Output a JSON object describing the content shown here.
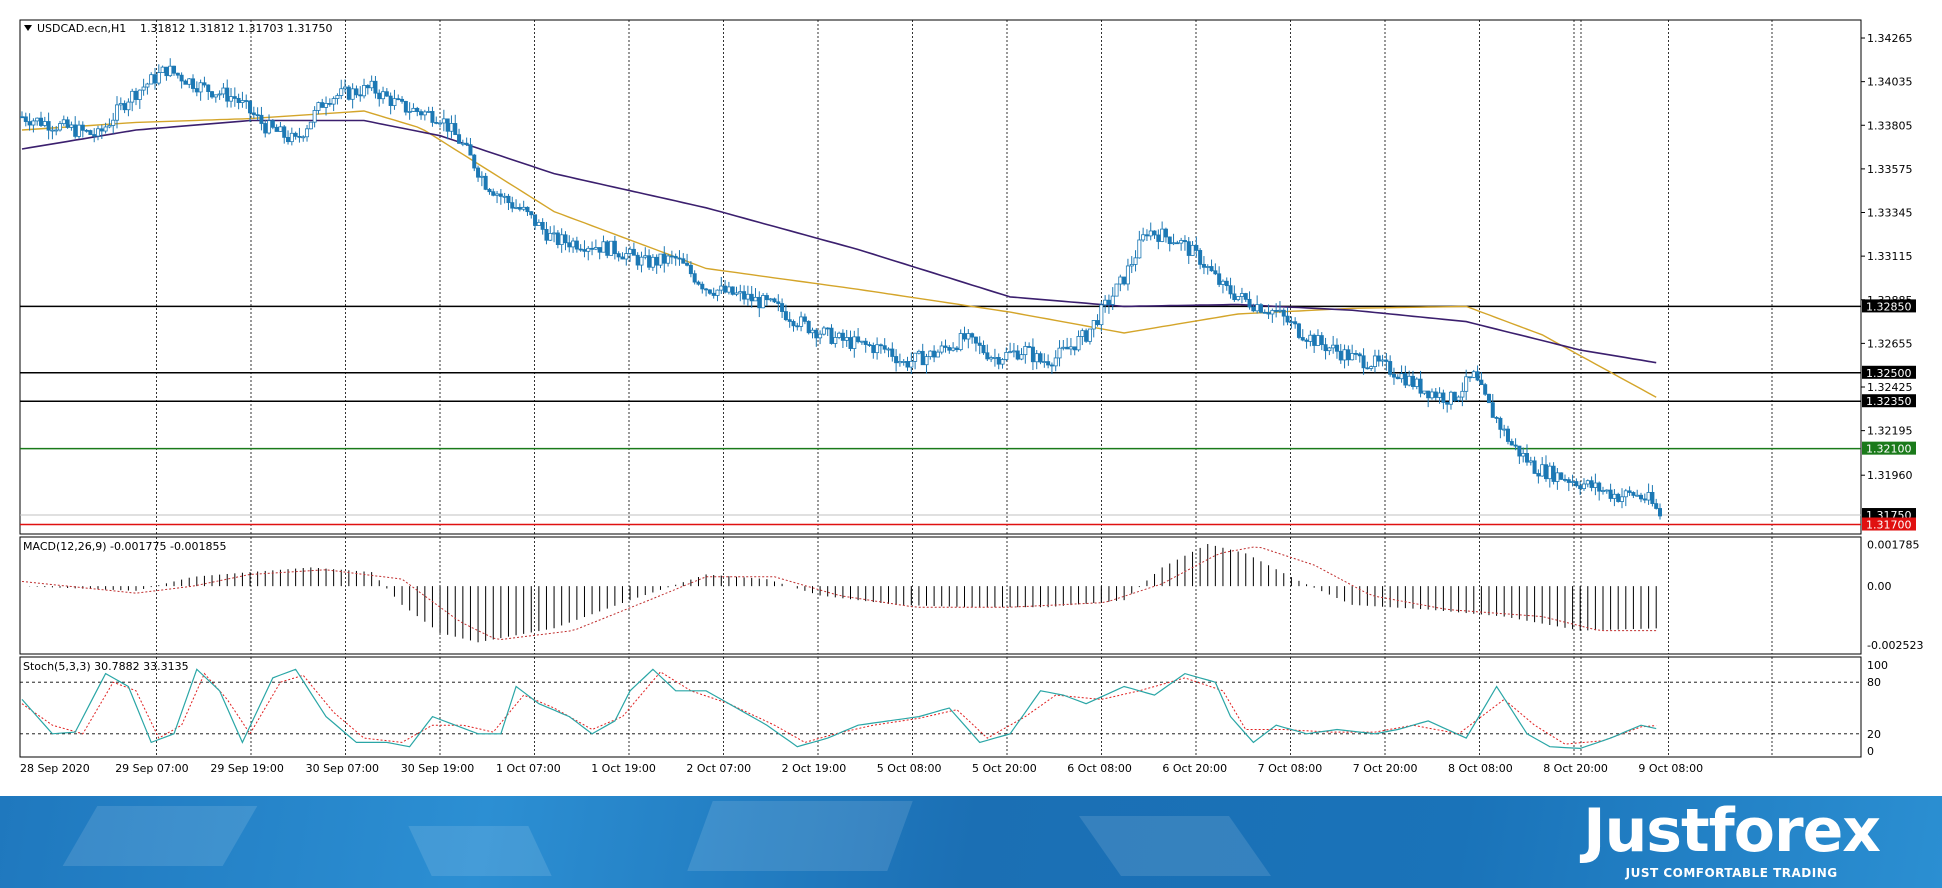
{
  "header": {
    "symbol": "USDCAD.ecn,H1",
    "ohlc": "1.31812 1.31812 1.31703 1.31750"
  },
  "macd_label": "MACD(12,26,9) -0.001775 -0.001855",
  "stoch_label": "Stoch(5,3,3) 30.7882 33.3135",
  "chart_data": {
    "type": "candlestick",
    "price_axis": {
      "ticks": [
        "1.34265",
        "1.34035",
        "1.33805",
        "1.33575",
        "1.33345",
        "1.33115",
        "1.32885",
        "1.32655",
        "1.32425",
        "1.32195",
        "1.31960"
      ],
      "range": [
        1.3165,
        1.3436
      ]
    },
    "x_labels": [
      "28 Sep 2020",
      "29 Sep 07:00",
      "29 Sep 19:00",
      "30 Sep 07:00",
      "30 Sep 19:00",
      "1 Oct 07:00",
      "1 Oct 19:00",
      "2 Oct 07:00",
      "2 Oct 19:00",
      "5 Oct 08:00",
      "5 Oct 20:00",
      "6 Oct 08:00",
      "6 Oct 20:00",
      "7 Oct 08:00",
      "7 Oct 20:00",
      "8 Oct 08:00",
      "8 Oct 20:00",
      "9 Oct 08:00"
    ],
    "levels": [
      {
        "price": 1.3285,
        "label": "1.32850",
        "color": "#000000",
        "tag_bg": "#000000",
        "tag_fg": "#ffffff"
      },
      {
        "price": 1.325,
        "label": "1.32500",
        "color": "#000000",
        "tag_bg": "#000000",
        "tag_fg": "#ffffff"
      },
      {
        "price": 1.3235,
        "label": "1.32350",
        "color": "#000000",
        "tag_bg": "#000000",
        "tag_fg": "#ffffff"
      },
      {
        "price": 1.321,
        "label": "1.32100",
        "color": "#1a7a1a",
        "tag_bg": "#1a7a1a",
        "tag_fg": "#ffffff"
      },
      {
        "price": 1.3175,
        "label": "1.31750",
        "color": "#c0c0c0",
        "tag_bg": "#000000",
        "tag_fg": "#ffffff"
      },
      {
        "price": 1.317,
        "label": "1.31700",
        "color": "#e01010",
        "tag_bg": "#e01010",
        "tag_fg": "#ffffff"
      }
    ],
    "close_path": [
      [
        0,
        1.3385
      ],
      [
        10,
        1.338
      ],
      [
        20,
        1.3375
      ],
      [
        28,
        1.3395
      ],
      [
        38,
        1.341
      ],
      [
        48,
        1.34
      ],
      [
        56,
        1.3395
      ],
      [
        64,
        1.338
      ],
      [
        72,
        1.3372
      ],
      [
        80,
        1.3395
      ],
      [
        92,
        1.34
      ],
      [
        100,
        1.339
      ],
      [
        110,
        1.3385
      ],
      [
        116,
        1.337
      ],
      [
        122,
        1.335
      ],
      [
        128,
        1.334
      ],
      [
        132,
        1.3335
      ],
      [
        140,
        1.332
      ],
      [
        148,
        1.3318
      ],
      [
        156,
        1.3315
      ],
      [
        164,
        1.3308
      ],
      [
        172,
        1.331
      ],
      [
        180,
        1.3295
      ],
      [
        190,
        1.329
      ],
      [
        198,
        1.3285
      ],
      [
        206,
        1.3275
      ],
      [
        214,
        1.3268
      ],
      [
        220,
        1.3265
      ],
      [
        228,
        1.3262
      ],
      [
        232,
        1.3255
      ],
      [
        240,
        1.326
      ],
      [
        248,
        1.3268
      ],
      [
        256,
        1.3258
      ],
      [
        264,
        1.3262
      ],
      [
        268,
        1.3256
      ],
      [
        272,
        1.3258
      ],
      [
        280,
        1.327
      ],
      [
        290,
        1.33
      ],
      [
        296,
        1.3325
      ],
      [
        304,
        1.332
      ],
      [
        310,
        1.331
      ],
      [
        316,
        1.3295
      ],
      [
        322,
        1.3288
      ],
      [
        330,
        1.3282
      ],
      [
        336,
        1.3272
      ],
      [
        342,
        1.3265
      ],
      [
        350,
        1.3258
      ],
      [
        356,
        1.3255
      ],
      [
        362,
        1.325
      ],
      [
        368,
        1.3242
      ],
      [
        376,
        1.3236
      ],
      [
        382,
        1.3248
      ],
      [
        386,
        1.3232
      ],
      [
        392,
        1.3212
      ],
      [
        398,
        1.32
      ],
      [
        404,
        1.3196
      ],
      [
        410,
        1.3192
      ],
      [
        416,
        1.3188
      ],
      [
        420,
        1.3185
      ],
      [
        424,
        1.3186
      ],
      [
        428,
        1.3183
      ],
      [
        431,
        1.3175
      ]
    ],
    "ma_purple": [
      [
        0,
        1.3368
      ],
      [
        30,
        1.3378
      ],
      [
        60,
        1.3383
      ],
      [
        90,
        1.3383
      ],
      [
        110,
        1.3375
      ],
      [
        140,
        1.3355
      ],
      [
        180,
        1.3337
      ],
      [
        220,
        1.3315
      ],
      [
        260,
        1.329
      ],
      [
        290,
        1.3285
      ],
      [
        320,
        1.3286
      ],
      [
        350,
        1.3283
      ],
      [
        380,
        1.3277
      ],
      [
        410,
        1.3262
      ],
      [
        431,
        1.3255
      ]
    ],
    "ma_gold": [
      [
        0,
        1.3378
      ],
      [
        30,
        1.3382
      ],
      [
        60,
        1.3384
      ],
      [
        90,
        1.3388
      ],
      [
        105,
        1.3379
      ],
      [
        140,
        1.3335
      ],
      [
        180,
        1.3305
      ],
      [
        220,
        1.3294
      ],
      [
        260,
        1.3282
      ],
      [
        290,
        1.3271
      ],
      [
        320,
        1.3281
      ],
      [
        350,
        1.3284
      ],
      [
        380,
        1.3285
      ],
      [
        400,
        1.327
      ],
      [
        431,
        1.3236
      ]
    ],
    "macd": {
      "ticks": [
        "0.001785",
        "0.00",
        "-0.002523"
      ],
      "range": [
        -0.0029,
        0.0021
      ],
      "hist_path": [
        [
          0,
          0.0
        ],
        [
          30,
          -0.0002
        ],
        [
          45,
          0.0004
        ],
        [
          60,
          0.0006
        ],
        [
          76,
          0.0008
        ],
        [
          92,
          0.0006
        ],
        [
          100,
          -0.0008
        ],
        [
          110,
          -0.002
        ],
        [
          120,
          -0.0024
        ],
        [
          140,
          -0.0018
        ],
        [
          160,
          -0.0006
        ],
        [
          180,
          0.0005
        ],
        [
          196,
          0.0003
        ],
        [
          210,
          -0.0004
        ],
        [
          230,
          -0.0008
        ],
        [
          250,
          -0.0009
        ],
        [
          270,
          -0.0009
        ],
        [
          290,
          -0.0006
        ],
        [
          300,
          0.0008
        ],
        [
          312,
          0.0018
        ],
        [
          322,
          0.0014
        ],
        [
          335,
          0.0003
        ],
        [
          350,
          -0.0008
        ],
        [
          370,
          -0.001
        ],
        [
          390,
          -0.0013
        ],
        [
          410,
          -0.0019
        ],
        [
          431,
          -0.0018
        ]
      ],
      "signal_path": [
        [
          0,
          0.0002
        ],
        [
          30,
          -0.0003
        ],
        [
          45,
          0.0
        ],
        [
          60,
          0.0005
        ],
        [
          80,
          0.0007
        ],
        [
          100,
          0.0003
        ],
        [
          115,
          -0.0015
        ],
        [
          125,
          -0.0023
        ],
        [
          145,
          -0.0019
        ],
        [
          165,
          -0.0006
        ],
        [
          180,
          0.0004
        ],
        [
          198,
          0.0004
        ],
        [
          215,
          -0.0004
        ],
        [
          235,
          -0.0009
        ],
        [
          260,
          -0.0009
        ],
        [
          285,
          -0.0007
        ],
        [
          300,
          0.0001
        ],
        [
          315,
          0.0014
        ],
        [
          325,
          0.0017
        ],
        [
          340,
          0.0009
        ],
        [
          355,
          -0.0004
        ],
        [
          375,
          -0.001
        ],
        [
          400,
          -0.0013
        ],
        [
          415,
          -0.0019
        ],
        [
          431,
          -0.0019
        ]
      ]
    },
    "stoch": {
      "ticks": [
        "100",
        "80",
        "20",
        "0"
      ],
      "levels": [
        80,
        20
      ],
      "k_path": [
        [
          0,
          60
        ],
        [
          8,
          20
        ],
        [
          14,
          22
        ],
        [
          22,
          90
        ],
        [
          28,
          75
        ],
        [
          34,
          10
        ],
        [
          40,
          20
        ],
        [
          46,
          95
        ],
        [
          52,
          70
        ],
        [
          58,
          10
        ],
        [
          66,
          85
        ],
        [
          72,
          95
        ],
        [
          80,
          40
        ],
        [
          88,
          10
        ],
        [
          96,
          10
        ],
        [
          102,
          5
        ],
        [
          108,
          40
        ],
        [
          114,
          30
        ],
        [
          120,
          20
        ],
        [
          126,
          20
        ],
        [
          130,
          75
        ],
        [
          136,
          55
        ],
        [
          144,
          40
        ],
        [
          150,
          20
        ],
        [
          156,
          35
        ],
        [
          160,
          70
        ],
        [
          166,
          95
        ],
        [
          172,
          70
        ],
        [
          180,
          70
        ],
        [
          188,
          50
        ],
        [
          196,
          30
        ],
        [
          204,
          5
        ],
        [
          212,
          15
        ],
        [
          220,
          30
        ],
        [
          228,
          35
        ],
        [
          236,
          40
        ],
        [
          244,
          50
        ],
        [
          252,
          10
        ],
        [
          260,
          20
        ],
        [
          268,
          70
        ],
        [
          274,
          65
        ],
        [
          280,
          55
        ],
        [
          290,
          75
        ],
        [
          298,
          65
        ],
        [
          306,
          90
        ],
        [
          314,
          80
        ],
        [
          318,
          40
        ],
        [
          324,
          10
        ],
        [
          330,
          30
        ],
        [
          338,
          20
        ],
        [
          346,
          25
        ],
        [
          356,
          20
        ],
        [
          362,
          25
        ],
        [
          370,
          35
        ],
        [
          380,
          15
        ],
        [
          388,
          75
        ],
        [
          396,
          20
        ],
        [
          402,
          5
        ],
        [
          410,
          3
        ],
        [
          418,
          15
        ],
        [
          426,
          30
        ],
        [
          431,
          25
        ]
      ],
      "d_path": [
        [
          0,
          55
        ],
        [
          8,
          30
        ],
        [
          16,
          20
        ],
        [
          24,
          80
        ],
        [
          30,
          70
        ],
        [
          36,
          15
        ],
        [
          42,
          30
        ],
        [
          48,
          90
        ],
        [
          54,
          60
        ],
        [
          60,
          20
        ],
        [
          68,
          80
        ],
        [
          74,
          88
        ],
        [
          82,
          45
        ],
        [
          90,
          15
        ],
        [
          100,
          10
        ],
        [
          108,
          30
        ],
        [
          116,
          30
        ],
        [
          124,
          22
        ],
        [
          132,
          65
        ],
        [
          140,
          50
        ],
        [
          150,
          25
        ],
        [
          158,
          40
        ],
        [
          168,
          92
        ],
        [
          176,
          70
        ],
        [
          186,
          55
        ],
        [
          198,
          30
        ],
        [
          206,
          10
        ],
        [
          214,
          20
        ],
        [
          224,
          30
        ],
        [
          236,
          38
        ],
        [
          246,
          48
        ],
        [
          254,
          15
        ],
        [
          264,
          40
        ],
        [
          272,
          65
        ],
        [
          284,
          60
        ],
        [
          294,
          70
        ],
        [
          306,
          85
        ],
        [
          316,
          70
        ],
        [
          322,
          25
        ],
        [
          332,
          25
        ],
        [
          344,
          22
        ],
        [
          356,
          22
        ],
        [
          366,
          30
        ],
        [
          378,
          20
        ],
        [
          390,
          60
        ],
        [
          398,
          30
        ],
        [
          406,
          8
        ],
        [
          416,
          12
        ],
        [
          426,
          28
        ],
        [
          431,
          30
        ]
      ]
    }
  },
  "brand": {
    "logo": "Justforex",
    "tagline": "JUST COMFORTABLE TRADING"
  },
  "colors": {
    "bull": "#ffffff",
    "bear": "#1c78b4",
    "ma_purple": "#3b1f6e",
    "ma_gold": "#d4a52a",
    "stoch_k": "#2aa6a6",
    "stoch_d": "#e02020"
  }
}
